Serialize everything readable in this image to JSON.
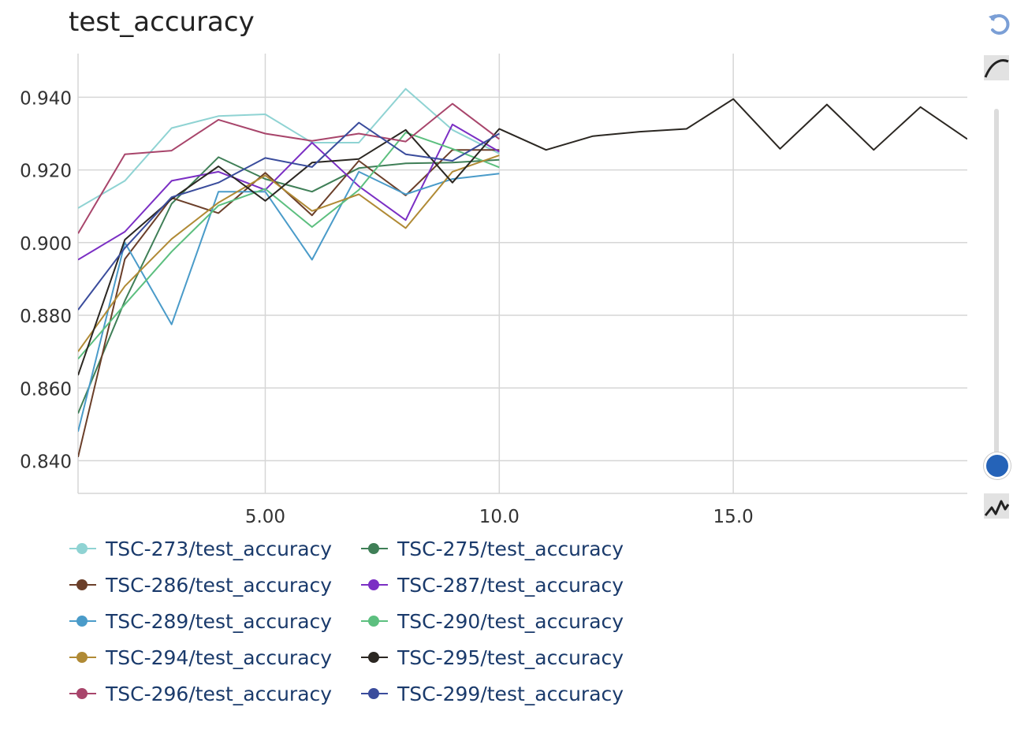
{
  "title": "test_accuracy",
  "controls": {
    "reset_icon": "reset-icon",
    "smoothing_icon": "smooth-curve-icon",
    "raw_icon": "raw-line-icon",
    "slider_value": 0
  },
  "chart_data": {
    "type": "line",
    "title": "test_accuracy",
    "xlabel": "",
    "ylabel": "",
    "xlim": [
      1,
      20
    ],
    "ylim": [
      0.831,
      0.952
    ],
    "xticks": [
      5,
      10,
      15
    ],
    "xtick_labels": [
      "5.00",
      "10.0",
      "15.0"
    ],
    "yticks": [
      0.84,
      0.86,
      0.88,
      0.9,
      0.92,
      0.94
    ],
    "ytick_labels": [
      "0.840",
      "0.860",
      "0.880",
      "0.900",
      "0.920",
      "0.940"
    ],
    "grid": true,
    "legend_position": "bottom",
    "series": [
      {
        "name": "TSC-273/test_accuracy",
        "color": "#8fd3d3",
        "x": [
          1,
          2,
          3,
          4,
          5,
          6,
          7,
          8,
          9,
          10
        ],
        "y": [
          0.9095,
          0.917,
          0.9315,
          0.9348,
          0.9353,
          0.9275,
          0.9275,
          0.9423,
          0.931,
          0.9245
        ]
      },
      {
        "name": "TSC-275/test_accuracy",
        "color": "#3f7f57",
        "x": [
          1,
          2,
          3,
          4,
          5,
          6,
          7,
          8,
          9,
          10
        ],
        "y": [
          0.853,
          0.884,
          0.9107,
          0.9235,
          0.9175,
          0.914,
          0.9205,
          0.9218,
          0.922,
          0.9228
        ]
      },
      {
        "name": "TSC-286/test_accuracy",
        "color": "#6b3f2a",
        "x": [
          1,
          2,
          3,
          4,
          5,
          6,
          7,
          8,
          9,
          10
        ],
        "y": [
          0.841,
          0.8955,
          0.9123,
          0.9081,
          0.9192,
          0.9075,
          0.9225,
          0.913,
          0.9255,
          0.9255
        ]
      },
      {
        "name": "TSC-287/test_accuracy",
        "color": "#7b2fc4",
        "x": [
          1,
          2,
          3,
          4,
          5,
          6,
          7,
          8,
          9,
          10
        ],
        "y": [
          0.8953,
          0.903,
          0.917,
          0.9195,
          0.9145,
          0.9275,
          0.9155,
          0.9062,
          0.9325,
          0.925
        ]
      },
      {
        "name": "TSC-289/test_accuracy",
        "color": "#4a9bc9",
        "x": [
          1,
          2,
          3,
          4,
          5,
          6,
          7,
          8,
          9,
          10
        ],
        "y": [
          0.848,
          0.9,
          0.8775,
          0.914,
          0.914,
          0.8953,
          0.9195,
          0.9133,
          0.9175,
          0.919
        ]
      },
      {
        "name": "TSC-290/test_accuracy",
        "color": "#5cbf7f",
        "x": [
          1,
          2,
          3,
          4,
          5,
          6,
          7,
          8,
          9,
          10
        ],
        "y": [
          0.868,
          0.883,
          0.8975,
          0.9102,
          0.9148,
          0.9043,
          0.9145,
          0.9303,
          0.9258,
          0.9207
        ]
      },
      {
        "name": "TSC-294/test_accuracy",
        "color": "#b08a35",
        "x": [
          1,
          2,
          3,
          4,
          5,
          6,
          7,
          8,
          9,
          10
        ],
        "y": [
          0.87,
          0.888,
          0.901,
          0.911,
          0.9185,
          0.9087,
          0.9133,
          0.904,
          0.9195,
          0.924
        ]
      },
      {
        "name": "TSC-295/test_accuracy",
        "color": "#2b2722",
        "x": [
          1,
          2,
          3,
          4,
          5,
          6,
          7,
          8,
          9,
          10,
          11,
          12,
          13,
          14,
          15,
          16,
          17,
          18,
          19,
          20
        ],
        "y": [
          0.8635,
          0.9008,
          0.912,
          0.921,
          0.9115,
          0.922,
          0.923,
          0.931,
          0.9165,
          0.9313,
          0.9255,
          0.9293,
          0.9305,
          0.9313,
          0.9395,
          0.9258,
          0.938,
          0.9255,
          0.9373,
          0.9285
        ]
      },
      {
        "name": "TSC-296/test_accuracy",
        "color": "#a8456b",
        "x": [
          1,
          2,
          3,
          4,
          5,
          6,
          7,
          8,
          9,
          10
        ],
        "y": [
          0.9025,
          0.9243,
          0.9253,
          0.9338,
          0.93,
          0.928,
          0.93,
          0.9278,
          0.9382,
          0.9285
        ]
      },
      {
        "name": "TSC-299/test_accuracy",
        "color": "#3a4c9c",
        "x": [
          1,
          2,
          3,
          4,
          5,
          6,
          7,
          8,
          9,
          10
        ],
        "y": [
          0.8815,
          0.8985,
          0.9125,
          0.9165,
          0.9233,
          0.9208,
          0.933,
          0.9243,
          0.9225,
          0.93
        ]
      }
    ]
  }
}
